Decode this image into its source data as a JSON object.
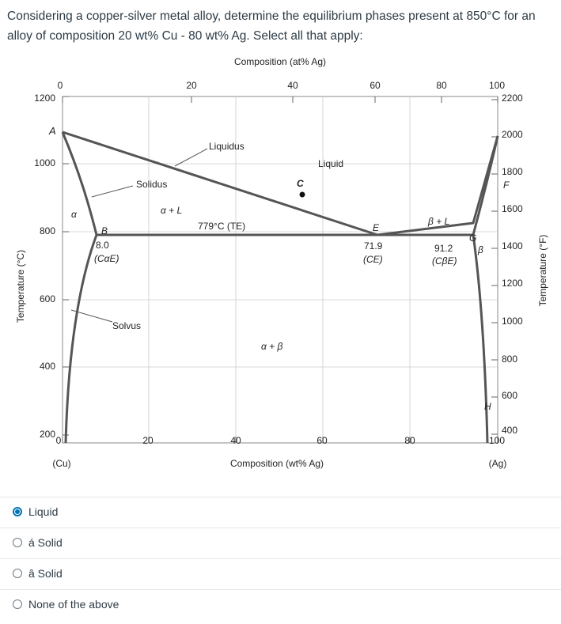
{
  "question": {
    "text": "Considering a copper-silver metal alloy, determine the equilibrium phases present at 850°C for an alloy of composition 20 wt% Cu - 80 wt% Ag. Select all that apply:"
  },
  "diagram": {
    "top_axis_title": "Composition (at% Ag)",
    "top_ticks": [
      "0",
      "20",
      "40",
      "60",
      "80",
      "100"
    ],
    "bottom_axis_title": "Composition (wt% Ag)",
    "bottom_ticks": [
      "0",
      "20",
      "40",
      "60",
      "80",
      "100"
    ],
    "left_axis_title": "Temperature (°C)",
    "left_ticks": [
      "1200",
      "1000",
      "800",
      "600",
      "400",
      "200"
    ],
    "right_axis_title": "Temperature (°F)",
    "right_ticks": [
      "2200",
      "2000",
      "1800",
      "1600",
      "1400",
      "1200",
      "1000",
      "800",
      "600",
      "400"
    ],
    "end_left": "(Cu)",
    "end_right": "(Ag)",
    "labels": {
      "A": "A",
      "B": "B",
      "C": "C",
      "E": "E",
      "F": "F",
      "G": "G",
      "H": "H",
      "alpha": "α",
      "beta": "β",
      "liquidus": "Liquidus",
      "solidus": "Solidus",
      "solvus": "Solvus",
      "liquid": "Liquid",
      "alpha_l": "α + L",
      "beta_l": "β + L",
      "alpha_beta": "α + β",
      "eutectic_temp": "779°C (TE)",
      "b_value": "8.0",
      "b_sub": "(CαE)",
      "e_value": "71.9",
      "e_sub": "(CE)",
      "g_value": "91.2",
      "g_sub": "(CβE)"
    },
    "colors": {
      "phase_line": "#555555",
      "grid": "#cccccc"
    }
  },
  "options": [
    {
      "label": "Liquid",
      "selected": true
    },
    {
      "label": "á Solid",
      "selected": false
    },
    {
      "label": "â Solid",
      "selected": false
    },
    {
      "label": "None of the above",
      "selected": false
    }
  ]
}
